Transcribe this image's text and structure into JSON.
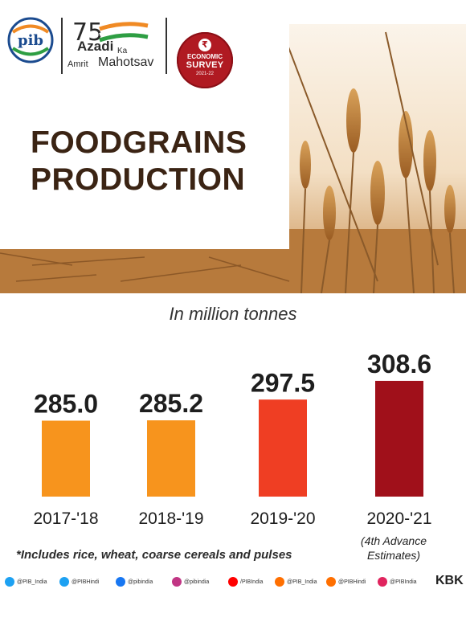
{
  "header": {
    "pib_logo_text": "pib",
    "azadi_number": "75",
    "azadi_line1": "Azadi",
    "azadi_ka": "Ka",
    "azadi_amrit": "Amrit",
    "azadi_mahotsav": "Mahotsav",
    "survey_line1": "ECONOMIC",
    "survey_line2": "SURVEY",
    "survey_line3": "2021-22"
  },
  "headline": {
    "line1": "FOODGRAINS",
    "line2": "PRODUCTION"
  },
  "unit_label": "In million tonnes",
  "chart_data": {
    "type": "bar",
    "title": "FOODGRAINS PRODUCTION",
    "ylabel": "In million tonnes",
    "categories": [
      "2017-'18",
      "2018-'19",
      "2019-'20",
      "2020-'21"
    ],
    "values": [
      285.0,
      285.2,
      297.5,
      308.6
    ],
    "value_labels": [
      "285.0",
      "285.2",
      "297.5",
      "308.6"
    ],
    "colors": [
      "#f7941d",
      "#f7941d",
      "#ef3e23",
      "#a0101a"
    ]
  },
  "estimate_note": {
    "line1": "(4th Advance",
    "line2": "Estimates)"
  },
  "footnote": "*Includes rice, wheat, coarse cereals and pulses",
  "social": {
    "handles": [
      {
        "text": "@PIB_India",
        "color": "#1da1f2"
      },
      {
        "text": "@PIBHindi",
        "color": "#1da1f2"
      },
      {
        "text": "@pibindia",
        "color": "#1877f2"
      },
      {
        "text": "@pibindia",
        "color": "#c13584"
      },
      {
        "text": "/PIBIndia",
        "color": "#ff0000"
      },
      {
        "text": "@PIB_India",
        "color": "#ff6f00"
      },
      {
        "text": "@PIBHindi",
        "color": "#ff6f00"
      },
      {
        "text": "@PIBIndia",
        "color": "#e0245e"
      }
    ],
    "tag": "KBK"
  }
}
